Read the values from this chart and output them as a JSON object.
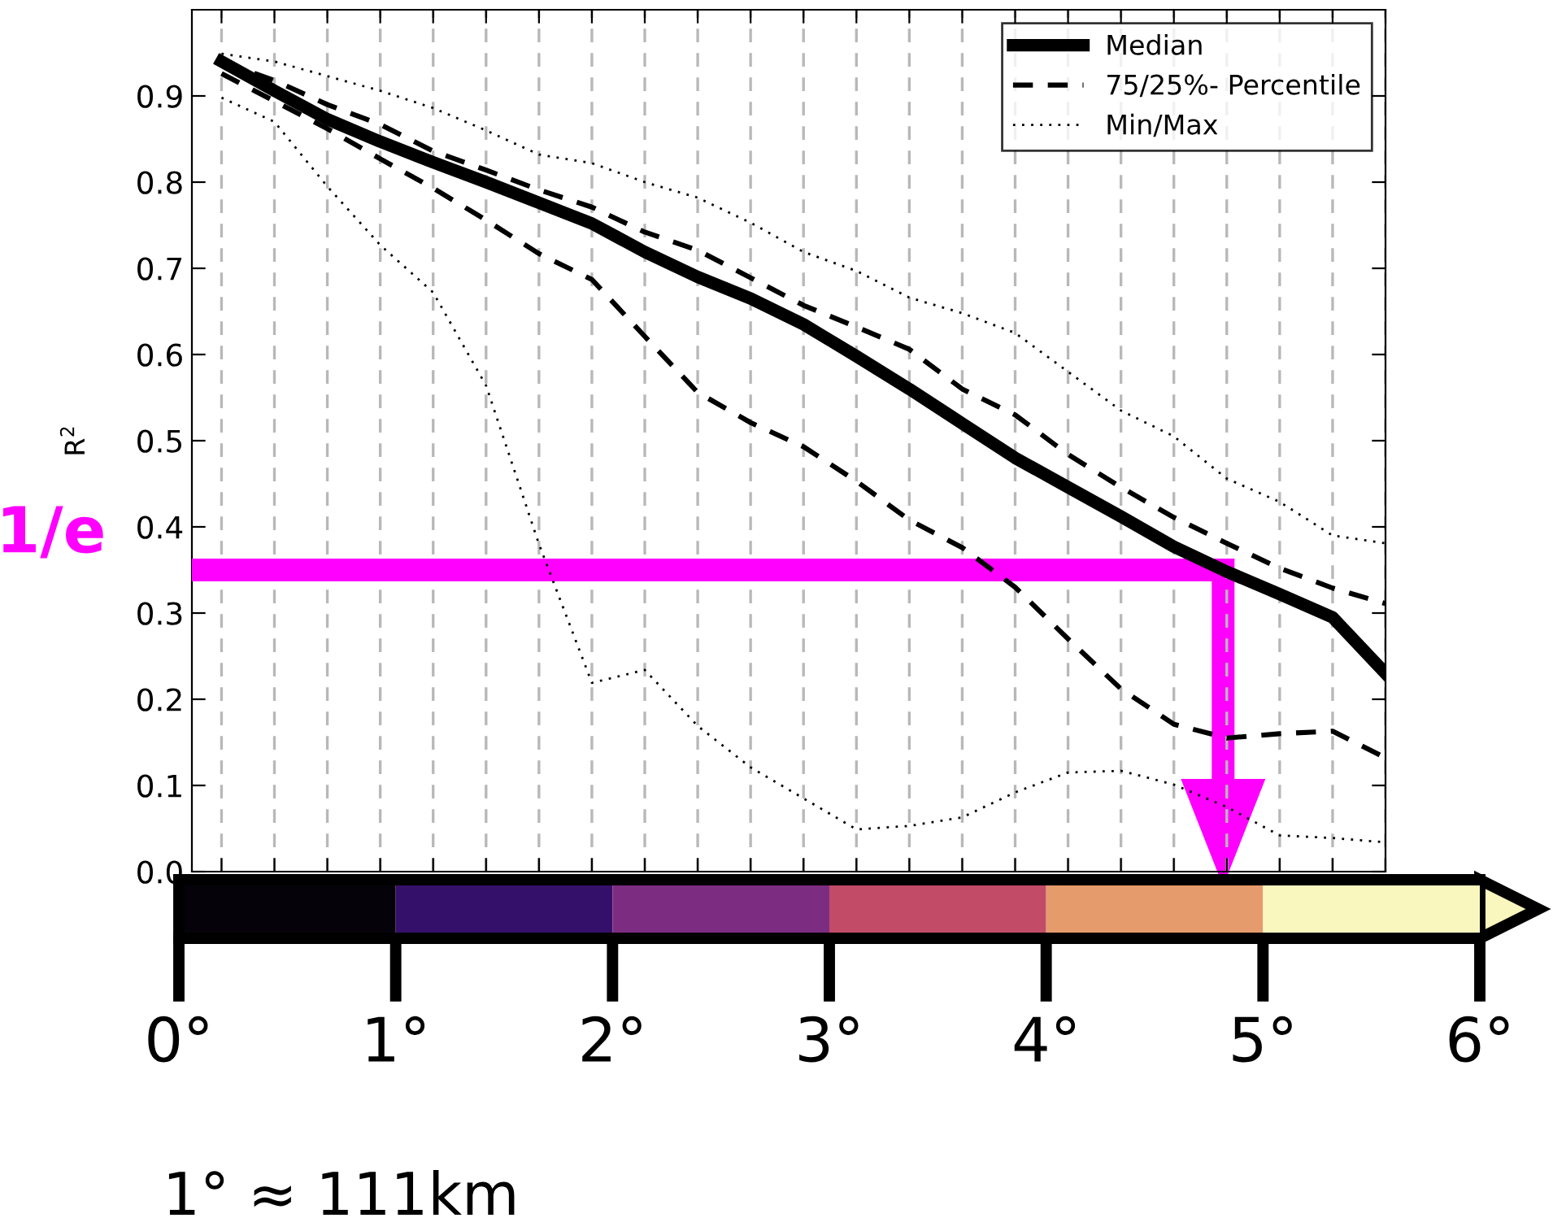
{
  "chart_data": [
    {
      "type": "line",
      "ylabel": "R$^{2}$",
      "categories": [
        null,
        null,
        null,
        null,
        null,
        null,
        null,
        null,
        null,
        null,
        null,
        null,
        null,
        null,
        null,
        null,
        null,
        null,
        null,
        null,
        null,
        null,
        null
      ],
      "series": [
        {
          "name": "Median",
          "color": "#000000",
          "line_style": "solid",
          "values": [
            0.94,
            0.906,
            0.873,
            0.847,
            0.823,
            0.8,
            0.776,
            0.752,
            0.719,
            0.69,
            0.665,
            0.635,
            0.598,
            0.56,
            0.52,
            0.48,
            0.446,
            0.412,
            0.377,
            0.348,
            0.322,
            0.295,
            0.23
          ]
        },
        {
          "name": "75/25%- Percentile",
          "color": "#000000",
          "line_style": "dashed",
          "values": [
            0.94,
            0.918,
            0.89,
            0.867,
            0.836,
            0.814,
            0.791,
            0.771,
            0.742,
            0.721,
            0.689,
            0.657,
            0.632,
            0.606,
            0.56,
            0.53,
            0.484,
            0.446,
            0.411,
            0.381,
            0.352,
            0.329,
            0.311
          ]
        },
        {
          "color": "#000000",
          "line_style": "dashed",
          "values": [
            0.926,
            0.894,
            0.862,
            0.827,
            0.793,
            0.756,
            0.717,
            0.687,
            0.621,
            0.556,
            0.521,
            0.493,
            0.453,
            0.408,
            0.376,
            0.33,
            0.27,
            0.212,
            0.171,
            0.155,
            0.16,
            0.163,
            0.132
          ]
        },
        {
          "name": "Min/Max",
          "color": "#000000",
          "line_style": "dotted",
          "values": [
            0.949,
            0.94,
            0.923,
            0.906,
            0.886,
            0.86,
            0.832,
            0.822,
            0.8,
            0.782,
            0.753,
            0.719,
            0.697,
            0.666,
            0.648,
            0.625,
            0.58,
            0.535,
            0.505,
            0.456,
            0.429,
            0.39,
            0.381
          ]
        },
        {
          "color": "#000000",
          "line_style": "dotted",
          "values": [
            0.898,
            0.87,
            0.795,
            0.727,
            0.672,
            0.564,
            0.38,
            0.219,
            0.234,
            0.169,
            0.121,
            0.085,
            0.049,
            0.053,
            0.063,
            0.092,
            0.115,
            0.117,
            0.101,
            0.075,
            0.042,
            0.039,
            0.034
          ]
        }
      ],
      "ylim": [
        0,
        1.0
      ],
      "yticks": [
        {
          "value": 0,
          "label": "0.0"
        },
        0.1,
        0.2,
        0.3,
        0.4,
        0.5,
        0.6,
        0.7,
        0.8,
        0.9
      ],
      "grid": "x",
      "legend": "top right",
      "tick_labels": "y",
      "ref_lines": [
        {
          "axis": "y",
          "value": 0.35,
          "label": "1/e",
          "color": "#ff00ff"
        }
      ]
    },
    {
      "type": "bar",
      "orientation": "horizontal",
      "stacked": true,
      "categories": [
        null
      ],
      "series": [
        {
          "color": "#050309",
          "values": [
            1
          ]
        },
        {
          "color": "#35106b",
          "values": [
            1
          ]
        },
        {
          "color": "#7c2d82",
          "values": [
            1
          ]
        },
        {
          "color": "#c24b67",
          "values": [
            1
          ]
        },
        {
          "color": "#e59b6c",
          "values": [
            1
          ]
        },
        {
          "color": "#f9f7bd",
          "values": [
            1
          ]
        }
      ],
      "xlim": [
        0,
        6
      ],
      "xticks": [
        {
          "value": 0,
          "label": "0°"
        },
        {
          "value": 1,
          "label": "1°"
        },
        {
          "value": 2,
          "label": "2°"
        },
        {
          "value": 3,
          "label": "3°"
        },
        {
          "value": 4,
          "label": "4°"
        },
        {
          "value": 5,
          "label": "5°"
        },
        {
          "value": 6,
          "label": "6°"
        }
      ],
      "tick_labels": "x",
      "annotations": [
        "1° ≈ 111km"
      ]
    }
  ]
}
